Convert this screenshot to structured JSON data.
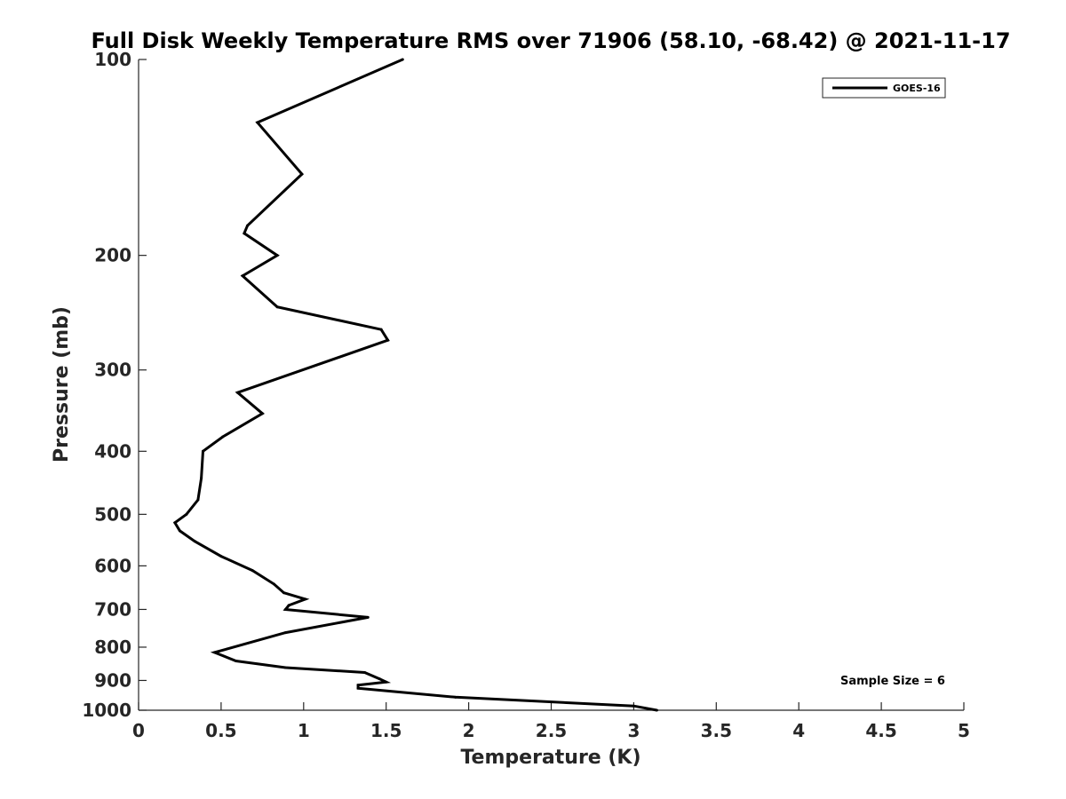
{
  "chart_data": {
    "type": "line",
    "title": "Full Disk Weekly Temperature RMS over 71906 (58.10, -68.42) @ 2021-11-17",
    "xlabel": "Temperature (K)",
    "ylabel": "Pressure (mb)",
    "xlim": [
      0,
      5
    ],
    "ylim": [
      100,
      1000
    ],
    "y_scale": "log",
    "y_reversed": true,
    "xticks": [
      0,
      0.5,
      1,
      1.5,
      2,
      2.5,
      3,
      3.5,
      4,
      4.5,
      5
    ],
    "xtick_labels": [
      "0",
      "0.5",
      "1",
      "1.5",
      "2",
      "2.5",
      "3",
      "3.5",
      "4",
      "4.5",
      "5"
    ],
    "yticks": [
      100,
      200,
      300,
      400,
      500,
      600,
      700,
      800,
      900,
      1000
    ],
    "ytick_labels": [
      "100",
      "200",
      "300",
      "400",
      "500",
      "600",
      "700",
      "800",
      "900",
      "1000"
    ],
    "grid": false,
    "legend": {
      "entries": [
        "GOES-16"
      ],
      "placement": "top-right"
    },
    "annotation": "Sample Size = 6",
    "series": [
      {
        "name": "GOES-16",
        "color": "#000000",
        "points": [
          [
            1.6,
            100
          ],
          [
            0.72,
            125
          ],
          [
            0.99,
            150
          ],
          [
            0.66,
            180
          ],
          [
            0.64,
            185
          ],
          [
            0.84,
            200
          ],
          [
            0.63,
            215
          ],
          [
            0.84,
            240
          ],
          [
            1.47,
            260
          ],
          [
            1.51,
            270
          ],
          [
            0.6,
            325
          ],
          [
            0.75,
            350
          ],
          [
            0.51,
            380
          ],
          [
            0.39,
            400
          ],
          [
            0.38,
            440
          ],
          [
            0.36,
            475
          ],
          [
            0.29,
            500
          ],
          [
            0.22,
            515
          ],
          [
            0.25,
            530
          ],
          [
            0.34,
            550
          ],
          [
            0.5,
            580
          ],
          [
            0.69,
            610
          ],
          [
            0.82,
            640
          ],
          [
            0.88,
            660
          ],
          [
            1.01,
            675
          ],
          [
            0.91,
            690
          ],
          [
            0.89,
            700
          ],
          [
            1.39,
            720
          ],
          [
            0.89,
            760
          ],
          [
            0.46,
            815
          ],
          [
            0.59,
            840
          ],
          [
            0.89,
            860
          ],
          [
            1.37,
            875
          ],
          [
            1.46,
            895
          ],
          [
            1.5,
            905
          ],
          [
            1.33,
            915
          ],
          [
            1.33,
            925
          ],
          [
            1.92,
            955
          ],
          [
            3.0,
            985
          ],
          [
            3.14,
            1000
          ]
        ]
      }
    ]
  }
}
